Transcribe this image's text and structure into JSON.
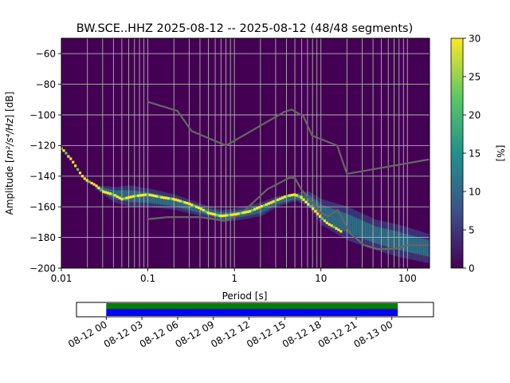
{
  "chart_data": {
    "type": "heatmap",
    "title": "BW.SCE..HHZ   2025-08-12 -- 2025-08-12  (48/48 segments)",
    "xlabel": "Period [s]",
    "ylabel_prefix": "Amplitude [",
    "ylabel_math": "m²/s⁴/Hz",
    "ylabel_suffix": "] [dB]",
    "x_scale": "log",
    "xlim": [
      0.01,
      180
    ],
    "ylim": [
      -200,
      -50
    ],
    "x_ticks": [
      {
        "value": 0.01,
        "label": "0.01"
      },
      {
        "value": 0.1,
        "label": "0.1"
      },
      {
        "value": 1,
        "label": "1"
      },
      {
        "value": 10,
        "label": "10"
      },
      {
        "value": 100,
        "label": "100"
      }
    ],
    "y_ticks": [
      {
        "value": -60,
        "label": "−60"
      },
      {
        "value": -80,
        "label": "−80"
      },
      {
        "value": -100,
        "label": "−100"
      },
      {
        "value": -120,
        "label": "−120"
      },
      {
        "value": -140,
        "label": "−140"
      },
      {
        "value": -160,
        "label": "−160"
      },
      {
        "value": -180,
        "label": "−180"
      },
      {
        "value": -200,
        "label": "−200"
      }
    ],
    "grid": true,
    "period_gridlines": [
      0.02,
      0.03,
      0.04,
      0.05,
      0.06,
      0.07,
      0.08,
      0.09,
      0.1,
      0.2,
      0.3,
      0.4,
      0.5,
      0.6,
      0.7,
      0.8,
      0.9,
      1,
      2,
      3,
      4,
      5,
      6,
      7,
      8,
      9,
      10,
      20,
      30,
      40,
      50,
      60,
      70,
      80,
      90,
      100
    ],
    "colorbar": {
      "label": "[%]",
      "min": 0,
      "max": 30,
      "ticks": [
        {
          "value": 0,
          "label": "0"
        },
        {
          "value": 5,
          "label": "5"
        },
        {
          "value": 10,
          "label": "10"
        },
        {
          "value": 15,
          "label": "15"
        },
        {
          "value": 20,
          "label": "20"
        },
        {
          "value": 25,
          "label": "25"
        },
        {
          "value": 30,
          "label": "30"
        }
      ],
      "colors": [
        "#440154",
        "#3b528b",
        "#21918c",
        "#5ec962",
        "#fde725"
      ]
    },
    "nhnm": [
      [
        0.1,
        -168
      ],
      [
        0.17,
        -166.7
      ],
      [
        0.4,
        -166.7
      ],
      [
        0.8,
        -169.2
      ],
      [
        1.24,
        -163.7
      ],
      [
        2.4,
        -148.6
      ],
      [
        4.3,
        -141.1
      ],
      [
        5,
        -141.1
      ],
      [
        6,
        -149
      ],
      [
        10,
        -163.8
      ],
      [
        12,
        -166.2
      ],
      [
        15.6,
        -162.1
      ],
      [
        21.9,
        -177.5
      ],
      [
        31.6,
        -185
      ],
      [
        45,
        -187.5
      ],
      [
        70,
        -187.5
      ],
      [
        101,
        -185
      ],
      [
        180,
        -185
      ]
    ],
    "nlnm_missing_note": "",
    "nhnm_upper": [
      [
        0.1,
        -91.5
      ],
      [
        0.22,
        -97.4
      ],
      [
        0.32,
        -110.5
      ],
      [
        0.8,
        -120
      ],
      [
        3.8,
        -97.9
      ],
      [
        4.6,
        -96.5
      ],
      [
        6.3,
        -101
      ],
      [
        7.9,
        -113.5
      ],
      [
        15.4,
        -120
      ],
      [
        20,
        -138.5
      ],
      [
        180,
        -129
      ]
    ],
    "mode_curve": [
      [
        0.01,
        -122
      ],
      [
        0.011,
        -124
      ],
      [
        0.012,
        -127
      ],
      [
        0.013,
        -129
      ],
      [
        0.016,
        -137
      ],
      [
        0.018,
        -141
      ],
      [
        0.02,
        -143
      ],
      [
        0.025,
        -146
      ],
      [
        0.03,
        -150
      ],
      [
        0.04,
        -152
      ],
      [
        0.05,
        -155
      ],
      [
        0.07,
        -153
      ],
      [
        0.1,
        -152
      ],
      [
        0.15,
        -154
      ],
      [
        0.2,
        -155
      ],
      [
        0.3,
        -158
      ],
      [
        0.4,
        -161
      ],
      [
        0.5,
        -164
      ],
      [
        0.7,
        -166
      ],
      [
        1,
        -165
      ],
      [
        1.5,
        -163
      ],
      [
        2,
        -160
      ],
      [
        3,
        -156
      ],
      [
        4,
        -153
      ],
      [
        5,
        -152
      ],
      [
        6,
        -154
      ],
      [
        7,
        -158
      ],
      [
        8,
        -161
      ],
      [
        10,
        -167
      ],
      [
        12,
        -171
      ],
      [
        14,
        -173
      ],
      [
        17,
        -176
      ]
    ],
    "spread_upper": [
      [
        0.025,
        -146
      ],
      [
        0.04,
        -147
      ],
      [
        0.06,
        -146
      ],
      [
        0.1,
        -148
      ],
      [
        0.2,
        -152
      ],
      [
        0.4,
        -158
      ],
      [
        0.7,
        -162
      ],
      [
        1,
        -161
      ],
      [
        2,
        -157
      ],
      [
        3,
        -153
      ],
      [
        5,
        -151
      ],
      [
        7,
        -150
      ],
      [
        10,
        -155
      ],
      [
        20,
        -160
      ],
      [
        40,
        -168
      ],
      [
        80,
        -172
      ],
      [
        180,
        -178
      ]
    ],
    "spread_lower": [
      [
        0.025,
        -149
      ],
      [
        0.04,
        -157
      ],
      [
        0.06,
        -160
      ],
      [
        0.1,
        -160
      ],
      [
        0.2,
        -162
      ],
      [
        0.4,
        -166
      ],
      [
        0.7,
        -170
      ],
      [
        1,
        -169
      ],
      [
        2,
        -166
      ],
      [
        3,
        -160
      ],
      [
        5,
        -156
      ],
      [
        7,
        -160
      ],
      [
        10,
        -172
      ],
      [
        20,
        -182
      ],
      [
        40,
        -188
      ],
      [
        80,
        -193
      ],
      [
        180,
        -197
      ]
    ],
    "timeline": {
      "tick_labels": [
        "08-12 00",
        "08-12 03",
        "08-12 06",
        "08-12 09",
        "08-12 12",
        "08-12 15",
        "08-12 18",
        "08-12 21",
        "08-13 00"
      ],
      "start_hour": -2.5,
      "end_hour": 27.5,
      "data_start_hour": 0,
      "data_end_hour": 24.5,
      "bar_colors": [
        "#008000",
        "#0000ff"
      ]
    }
  }
}
